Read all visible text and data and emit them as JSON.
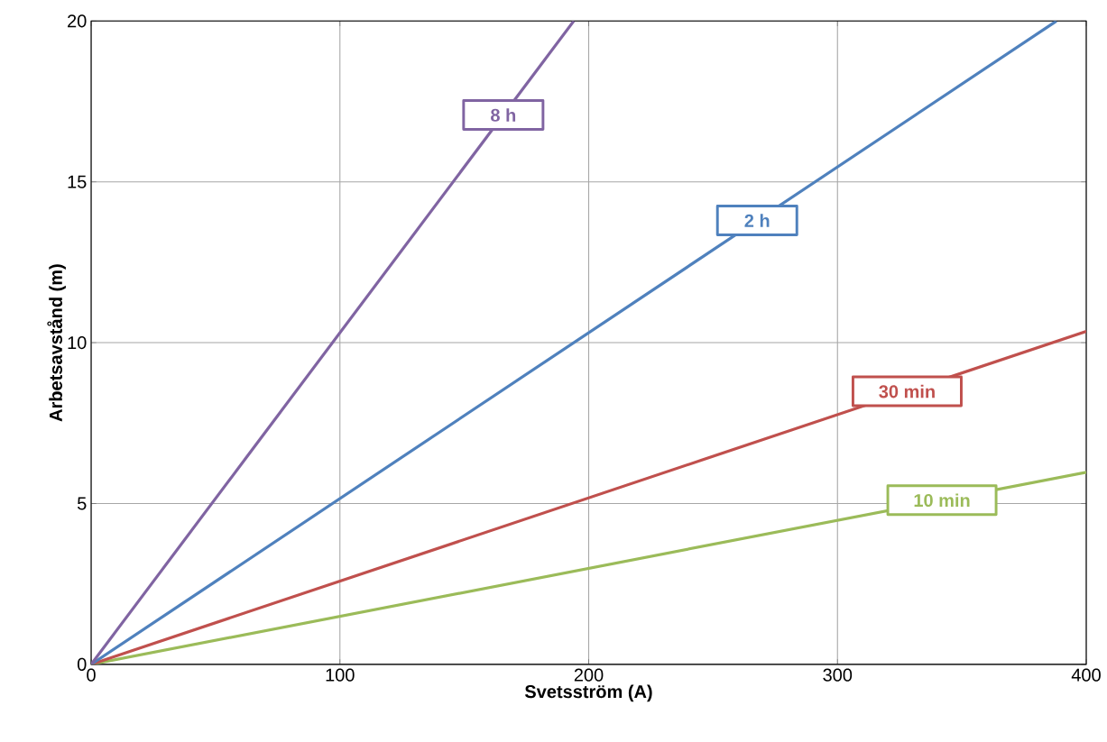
{
  "chart_data": {
    "type": "line",
    "xlabel": "Svetsström (A)",
    "ylabel": "Arbetsavstånd (m)",
    "xlim": [
      0,
      400
    ],
    "ylim": [
      0,
      20
    ],
    "xticks": [
      0,
      100,
      200,
      300,
      400
    ],
    "yticks": [
      0,
      5,
      10,
      15,
      20
    ],
    "grid": true,
    "marker": "none",
    "line_style": "solid",
    "series": [
      {
        "name": "10 min",
        "color": "#9bbb59",
        "x": [
          0,
          400
        ],
        "values": [
          0,
          5.97
        ]
      },
      {
        "name": "30 min",
        "color": "#c0504d",
        "x": [
          0,
          400
        ],
        "values": [
          0,
          10.35
        ]
      },
      {
        "name": "2 h",
        "color": "#4f81bd",
        "x": [
          0,
          388
        ],
        "values": [
          0,
          20
        ]
      },
      {
        "name": "8 h",
        "color": "#8064a2",
        "x": [
          0,
          194
        ],
        "values": [
          0,
          20
        ]
      }
    ]
  }
}
